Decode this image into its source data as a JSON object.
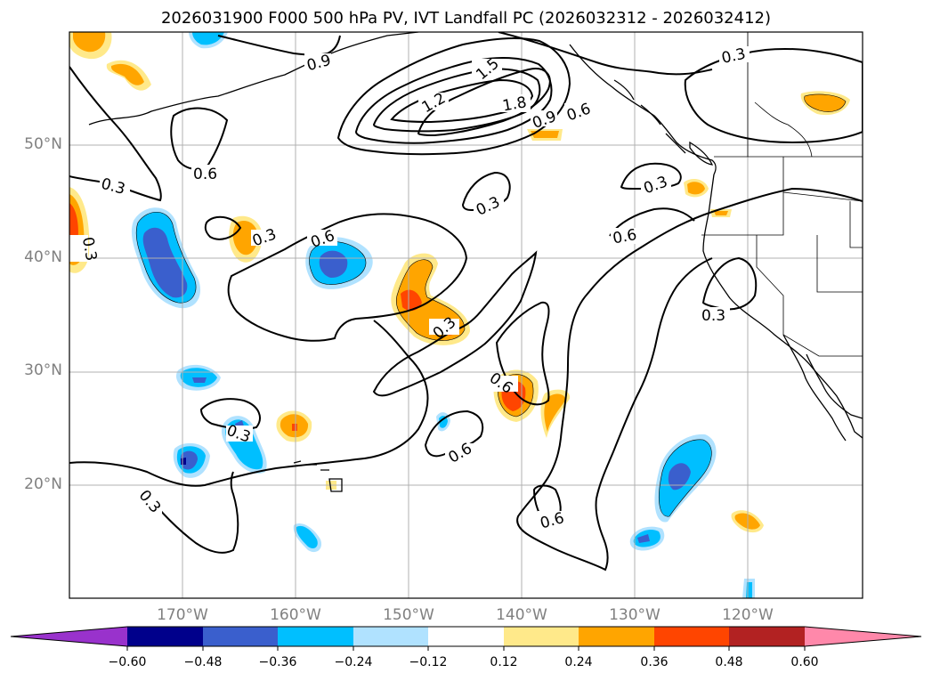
{
  "title": "2026031900 F000 500 hPa PV, IVT Landfall PC (2026032312 - 2026032412)",
  "lat_labels": [
    "50°N",
    "40°N",
    "30°N",
    "20°N"
  ],
  "lon_labels": [
    "170°W",
    "160°W",
    "150°W",
    "140°W",
    "130°W",
    "120°W"
  ],
  "contour_labels": [
    "0.3",
    "0.6",
    "0.9",
    "1.2",
    "1.5",
    "1.8"
  ],
  "colorbar": {
    "tick_labels": [
      "−0.60",
      "−0.48",
      "−0.36",
      "−0.24",
      "−0.12",
      "0.12",
      "0.24",
      "0.36",
      "0.48",
      "0.60"
    ],
    "colors": {
      "under": "#9932CC",
      "b1": "#00008B",
      "b2": "#3A5FCD",
      "b3": "#00BFFF",
      "b4": "#B0E2FF",
      "b5": "#FFFFFF",
      "b6": "#FFE98A",
      "b7": "#FFA500",
      "b8": "#FF4500",
      "b9": "#B22222",
      "over": "#FF88AA"
    }
  }
}
